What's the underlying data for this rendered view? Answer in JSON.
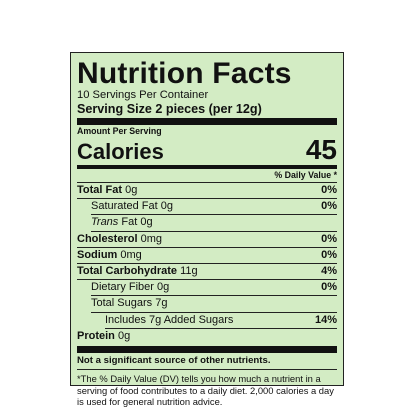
{
  "label": {
    "title": "Nutrition Facts",
    "servings_per_container": "10 Servings Per Container",
    "serving_size_label": "Serving Size 2 pieces (per 12g)",
    "amount_per_serving": "Amount Per Serving",
    "calories_label": "Calories",
    "calories_value": "45",
    "daily_value_header": "% Daily Value *",
    "nutrients": [
      {
        "name": "Total Fat",
        "amount": "0g",
        "dv": "0%"
      },
      {
        "name": "Saturated Fat",
        "amount": "0g",
        "dv": "0%"
      },
      {
        "name": "Trans",
        "name_suffix": "Fat",
        "amount": "0g",
        "dv": ""
      },
      {
        "name": "Cholesterol",
        "amount": "0mg",
        "dv": "0%"
      },
      {
        "name": "Sodium",
        "amount": "0mg",
        "dv": "0%"
      },
      {
        "name": "Total Carbohydrate",
        "amount": "11g",
        "dv": "4%"
      },
      {
        "name": "Dietary Fiber",
        "amount": "0g",
        "dv": "0%"
      },
      {
        "name": "Total Sugars",
        "amount": "7g",
        "dv": ""
      },
      {
        "name": "Includes 7g Added Sugars",
        "amount": "",
        "dv": "14%"
      },
      {
        "name": "Protein",
        "amount": "0g",
        "dv": ""
      }
    ],
    "not_significant": "Not a significant source of other nutrients.",
    "footnote": "*The % Daily Value (DV) tells you how much a nutrient in a serving of food contributes to a daily diet. 2,000 calories a day is used for general nutrition advice."
  }
}
